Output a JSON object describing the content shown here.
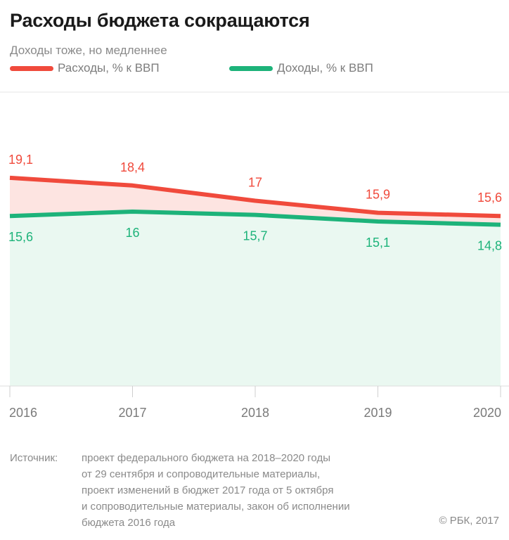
{
  "header": {
    "title": "Расходы бюджета сокращаются",
    "subtitle": "Доходы тоже, но медленнее"
  },
  "chart_data": {
    "type": "line",
    "title": "Расходы бюджета сокращаются",
    "subtitle": "Доходы тоже, но медленнее",
    "categories": [
      "2016",
      "2017",
      "2018",
      "2019",
      "2020"
    ],
    "series": [
      {
        "name": "Расходы, % к ВВП",
        "values": [
          19.1,
          18.4,
          17,
          15.9,
          15.6
        ],
        "labels": [
          "19,1",
          "18,4",
          "17",
          "15,9",
          "15,6"
        ],
        "color": "#f04a3c"
      },
      {
        "name": "Доходы, % к ВВП",
        "values": [
          15.6,
          16,
          15.7,
          15.1,
          14.8
        ],
        "labels": [
          "15,6",
          "16",
          "15,7",
          "15,1",
          "14,8"
        ],
        "color": "#1db37a"
      }
    ],
    "ylim": [
      0,
      28
    ],
    "grid": false,
    "legend": "top-left"
  },
  "source": {
    "label": "Источник:",
    "lines": [
      "проект федерального бюджета на 2018–2020 годы",
      "от 29 сентября и сопроводительные материалы,",
      "проект изменений в бюджет 2017 года от 5 октября",
      "и сопроводительные материалы, закон об исполнении",
      "бюджета 2016 года"
    ]
  },
  "copyright": "© РБК, 2017"
}
